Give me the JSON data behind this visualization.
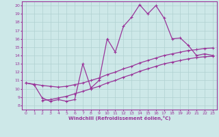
{
  "xlabel": "Windchill (Refroidissement éolien,°C)",
  "xlim": [
    -0.5,
    23.5
  ],
  "ylim": [
    7.5,
    20.5
  ],
  "xticks": [
    0,
    1,
    2,
    3,
    4,
    5,
    6,
    7,
    8,
    9,
    10,
    11,
    12,
    13,
    14,
    15,
    16,
    17,
    18,
    19,
    20,
    21,
    22,
    23
  ],
  "yticks": [
    8,
    9,
    10,
    11,
    12,
    13,
    14,
    15,
    16,
    17,
    18,
    19,
    20
  ],
  "bg_color": "#cde8e8",
  "line_color": "#993399",
  "grid_color": "#b0d0d0",
  "line1_x": [
    0,
    1,
    2,
    3,
    4,
    5,
    6,
    7,
    8,
    9,
    10,
    11,
    12,
    13,
    14,
    15,
    16,
    17,
    18,
    19,
    20,
    21,
    22,
    23
  ],
  "line1_y": [
    10.7,
    10.5,
    8.9,
    8.5,
    8.7,
    8.5,
    8.7,
    13.0,
    10.1,
    11.0,
    16.0,
    14.4,
    17.5,
    18.6,
    20.1,
    19.0,
    20.0,
    18.5,
    16.0,
    16.1,
    15.2,
    14.0,
    14.2,
    14.0
  ],
  "line2_x": [
    0,
    1,
    2,
    3,
    4,
    5,
    6,
    7,
    8,
    9,
    10,
    11,
    12,
    13,
    14,
    15,
    16,
    17,
    18,
    19,
    20,
    21,
    22,
    23
  ],
  "line2_y": [
    10.7,
    10.55,
    10.4,
    10.3,
    10.2,
    10.3,
    10.5,
    10.7,
    11.0,
    11.3,
    11.7,
    12.0,
    12.4,
    12.7,
    13.1,
    13.4,
    13.7,
    14.0,
    14.2,
    14.4,
    14.6,
    14.7,
    14.85,
    14.9
  ],
  "line3_x": [
    2,
    3,
    4,
    5,
    6,
    7,
    8,
    9,
    10,
    11,
    12,
    13,
    14,
    15,
    16,
    17,
    18,
    19,
    20,
    21,
    22,
    23
  ],
  "line3_y": [
    8.6,
    8.7,
    8.9,
    9.1,
    9.4,
    9.7,
    10.0,
    10.3,
    10.7,
    11.0,
    11.4,
    11.7,
    12.1,
    12.4,
    12.7,
    13.0,
    13.2,
    13.4,
    13.6,
    13.75,
    13.85,
    13.9
  ]
}
